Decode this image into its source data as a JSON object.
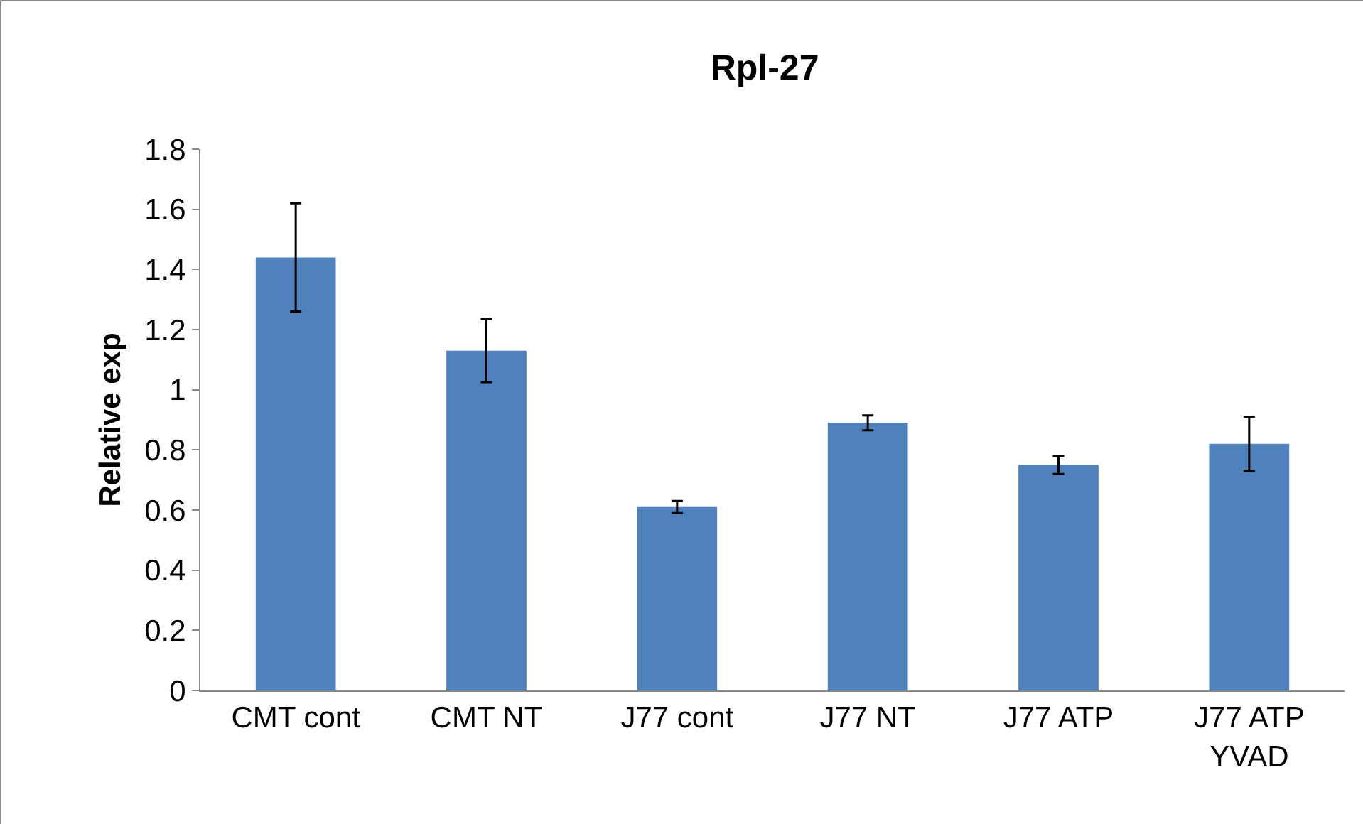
{
  "chart_data": {
    "type": "bar",
    "title": "Rpl-27",
    "ylabel": "Relative exp",
    "categories": [
      "CMT cont",
      "CMT NT",
      "J77 cont",
      "J77 NT",
      "J77 ATP",
      "J77 ATP YVAD"
    ],
    "values": [
      1.44,
      1.13,
      0.61,
      0.89,
      0.75,
      0.82
    ],
    "errors": [
      0.18,
      0.105,
      0.02,
      0.025,
      0.03,
      0.09
    ],
    "color": "#4f81bd",
    "ylim": [
      0,
      1.8
    ],
    "yticks": [
      0,
      0.2,
      0.4,
      0.6,
      0.8,
      1,
      1.2,
      1.4,
      1.6,
      1.8
    ]
  }
}
